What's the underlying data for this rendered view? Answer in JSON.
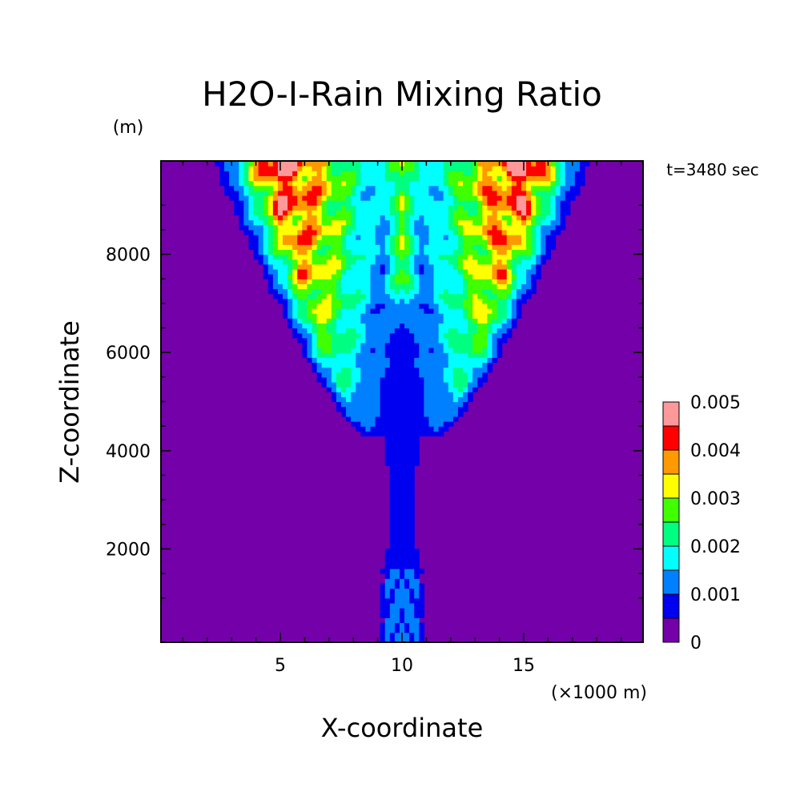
{
  "chart_data": {
    "type": "heatmap",
    "title": "H2O-I-Rain Mixing Ratio",
    "xlabel": "X-coordinate",
    "ylabel": "Z-coordinate",
    "x_unit": "(×1000 m)",
    "y_unit": "(m)",
    "time_label": "t=3480 sec",
    "xlim": [
      0.1,
      19.9
    ],
    "ylim": [
      100,
      9900
    ],
    "x_ticks": [
      5,
      10,
      15
    ],
    "y_ticks": [
      2000,
      4000,
      6000,
      8000
    ],
    "colorbar": {
      "levels": [
        0,
        0.0005,
        0.001,
        0.0015,
        0.002,
        0.0025,
        0.003,
        0.0035,
        0.004,
        0.0045,
        0.005
      ],
      "labels": [
        "0",
        "0.001",
        "0.002",
        "0.003",
        "0.004",
        "0.005"
      ],
      "colors": [
        "#7300a8",
        "#0000f0",
        "#0080ff",
        "#00ffff",
        "#00ff80",
        "#40ff00",
        "#ffff00",
        "#ff9900",
        "#ff0000",
        "#ff9999"
      ]
    },
    "description_field": {
      "plume_center_x": 10,
      "stem_top_z": 6000,
      "anvil_top_z": 9900
    }
  }
}
